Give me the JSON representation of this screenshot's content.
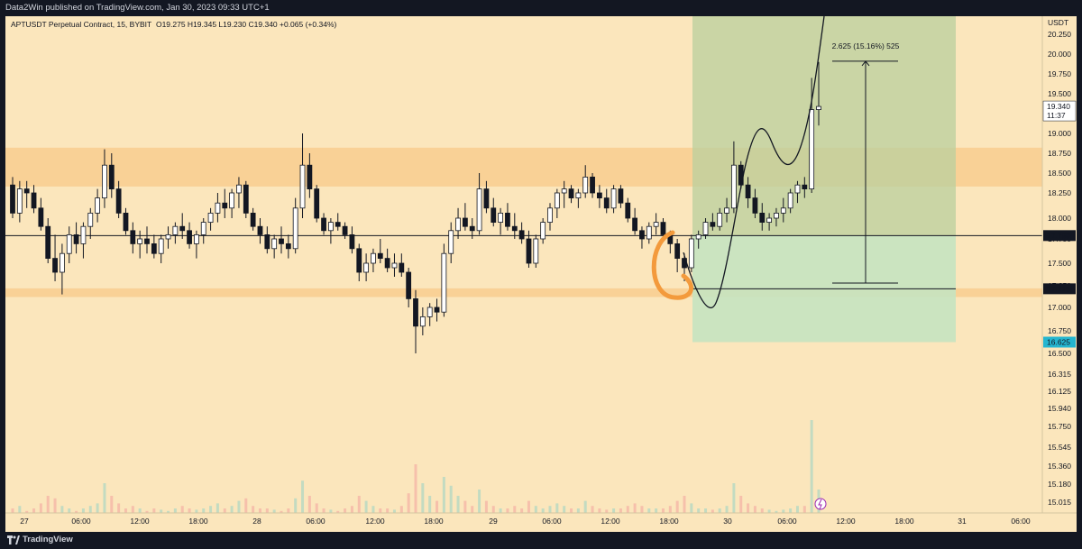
{
  "header": {
    "publisher_text": "Data2Win published on TradingView.com, Jan 30, 2023 09:33 UTC+1"
  },
  "legend": {
    "symbol": "APTUSDT Perpetual Contract, 15, BYBIT",
    "ohlc": "O19.275 H19.345 L19.230 C19.340 +0.065 (+0.34%)"
  },
  "footer": {
    "brand": "TradingView"
  },
  "colors": {
    "background": "#fbe6bc",
    "zone": "#f8c98a",
    "long_profit": "#b9cf9e",
    "long_stop": "#c5e3c0",
    "candle": "#131722",
    "orange_marker": "#f39a3c",
    "axis_tag": "#131722",
    "stop_tag": "#24b6d0"
  },
  "chart_data": {
    "type": "candlestick",
    "symbol": "APTUSDT",
    "interval": "15",
    "exchange": "BYBIT",
    "currency_label": "USDT",
    "ylim": [
      14.9,
      20.45
    ],
    "y_ticks": [
      "20.250",
      "20.000",
      "19.750",
      "19.500",
      "19.250",
      "19.000",
      "18.750",
      "18.500",
      "18.250",
      "18.000",
      "17.750",
      "17.500",
      "17.250",
      "17.000",
      "16.750",
      "16.500",
      "16.315",
      "16.125",
      "15.940",
      "15.750",
      "15.545",
      "15.360",
      "15.180",
      "15.015"
    ],
    "x_ticks": [
      "27",
      "06:00",
      "12:00",
      "18:00",
      "28",
      "06:00",
      "12:00",
      "18:00",
      "29",
      "06:00",
      "12:00",
      "18:00",
      "30",
      "06:00",
      "12:00",
      "18:00",
      "31",
      "06:00"
    ],
    "price_tags": [
      {
        "label": "19.340",
        "value": 19.34,
        "sub": "11:37"
      },
      {
        "label": "17.790",
        "value": 17.79
      },
      {
        "label": "17.215",
        "value": 17.215
      },
      {
        "label": "16.625",
        "value": 16.625
      }
    ],
    "horizontal_lines": [
      17.79,
      17.215
    ],
    "zones": [
      {
        "from": 18.33,
        "to": 18.82
      },
      {
        "from": 17.12,
        "to": 17.22
      }
    ],
    "position": {
      "entry": 17.79,
      "target": 20.45,
      "stop": 16.625,
      "x_from": "29 20:00",
      "x_to": "31 00:00"
    },
    "measure": {
      "label": "2.625 (15.16%) 525",
      "from": 17.28,
      "to": 19.91
    },
    "ohlc_points": [
      [
        18.35,
        18.45,
        18.0,
        18.05
      ],
      [
        18.05,
        18.4,
        17.95,
        18.3
      ],
      [
        18.3,
        18.4,
        18.1,
        18.25
      ],
      [
        18.25,
        18.35,
        18.05,
        18.1
      ],
      [
        18.1,
        18.2,
        17.85,
        17.9
      ],
      [
        17.9,
        18.0,
        17.5,
        17.55
      ],
      [
        17.55,
        17.8,
        17.3,
        17.4
      ],
      [
        17.4,
        17.7,
        17.15,
        17.6
      ],
      [
        17.6,
        17.9,
        17.5,
        17.8
      ],
      [
        17.8,
        17.95,
        17.6,
        17.7
      ],
      [
        17.7,
        17.95,
        17.55,
        17.9
      ],
      [
        17.9,
        18.1,
        17.75,
        18.05
      ],
      [
        18.05,
        18.3,
        17.95,
        18.2
      ],
      [
        18.2,
        18.8,
        18.1,
        18.6
      ],
      [
        18.6,
        18.75,
        18.2,
        18.3
      ],
      [
        18.3,
        18.4,
        18.0,
        18.05
      ],
      [
        18.05,
        18.1,
        17.8,
        17.85
      ],
      [
        17.85,
        17.95,
        17.6,
        17.7
      ],
      [
        17.7,
        17.85,
        17.55,
        17.75
      ],
      [
        17.75,
        17.9,
        17.6,
        17.7
      ],
      [
        17.7,
        17.8,
        17.55,
        17.6
      ],
      [
        17.6,
        17.8,
        17.5,
        17.75
      ],
      [
        17.75,
        17.9,
        17.65,
        17.8
      ],
      [
        17.8,
        17.95,
        17.7,
        17.9
      ],
      [
        17.9,
        18.05,
        17.75,
        17.85
      ],
      [
        17.85,
        17.95,
        17.65,
        17.7
      ],
      [
        17.7,
        17.85,
        17.55,
        17.8
      ],
      [
        17.8,
        18.0,
        17.7,
        17.95
      ],
      [
        17.95,
        18.1,
        17.85,
        18.05
      ],
      [
        18.05,
        18.25,
        17.95,
        18.15
      ],
      [
        18.15,
        18.3,
        18.0,
        18.1
      ],
      [
        18.1,
        18.3,
        18.0,
        18.25
      ],
      [
        18.25,
        18.45,
        18.1,
        18.35
      ],
      [
        18.35,
        18.4,
        18.0,
        18.05
      ],
      [
        18.05,
        18.1,
        17.85,
        17.9
      ],
      [
        17.9,
        18.0,
        17.7,
        17.8
      ],
      [
        17.8,
        17.9,
        17.6,
        17.65
      ],
      [
        17.65,
        17.8,
        17.55,
        17.75
      ],
      [
        17.75,
        17.9,
        17.6,
        17.7
      ],
      [
        17.7,
        17.8,
        17.55,
        17.65
      ],
      [
        17.65,
        18.2,
        17.6,
        18.1
      ],
      [
        18.1,
        19.0,
        18.0,
        18.6
      ],
      [
        18.6,
        18.75,
        18.2,
        18.3
      ],
      [
        18.3,
        18.35,
        17.95,
        18.0
      ],
      [
        18.0,
        18.05,
        17.8,
        17.85
      ],
      [
        17.85,
        18.0,
        17.7,
        17.95
      ],
      [
        17.95,
        18.05,
        17.85,
        17.9
      ],
      [
        17.9,
        17.95,
        17.75,
        17.8
      ],
      [
        17.8,
        17.9,
        17.6,
        17.65
      ],
      [
        17.65,
        17.7,
        17.3,
        17.4
      ],
      [
        17.4,
        17.6,
        17.3,
        17.5
      ],
      [
        17.5,
        17.65,
        17.4,
        17.6
      ],
      [
        17.6,
        17.75,
        17.5,
        17.55
      ],
      [
        17.55,
        17.65,
        17.4,
        17.45
      ],
      [
        17.45,
        17.6,
        17.35,
        17.5
      ],
      [
        17.5,
        17.6,
        17.35,
        17.4
      ],
      [
        17.4,
        17.45,
        17.0,
        17.1
      ],
      [
        17.1,
        17.2,
        16.5,
        16.8
      ],
      [
        16.8,
        17.0,
        16.7,
        16.9
      ],
      [
        16.9,
        17.05,
        16.8,
        17.0
      ],
      [
        17.0,
        17.1,
        16.85,
        16.95
      ],
      [
        16.95,
        17.7,
        16.9,
        17.6
      ],
      [
        17.6,
        17.95,
        17.5,
        17.85
      ],
      [
        17.85,
        18.1,
        17.75,
        18.0
      ],
      [
        18.0,
        18.15,
        17.85,
        17.9
      ],
      [
        17.9,
        18.0,
        17.75,
        17.85
      ],
      [
        17.85,
        18.5,
        17.8,
        18.3
      ],
      [
        18.3,
        18.4,
        18.05,
        18.1
      ],
      [
        18.1,
        18.2,
        17.9,
        17.95
      ],
      [
        17.95,
        18.1,
        17.8,
        18.05
      ],
      [
        18.05,
        18.15,
        17.85,
        17.9
      ],
      [
        17.9,
        18.05,
        17.75,
        17.85
      ],
      [
        17.85,
        17.95,
        17.7,
        17.75
      ],
      [
        17.75,
        17.85,
        17.45,
        17.5
      ],
      [
        17.5,
        17.8,
        17.45,
        17.75
      ],
      [
        17.75,
        18.0,
        17.7,
        17.95
      ],
      [
        17.95,
        18.15,
        17.85,
        18.1
      ],
      [
        18.1,
        18.3,
        18.0,
        18.25
      ],
      [
        18.25,
        18.4,
        18.1,
        18.3
      ],
      [
        18.3,
        18.35,
        18.15,
        18.2
      ],
      [
        18.2,
        18.3,
        18.1,
        18.25
      ],
      [
        18.25,
        18.6,
        18.2,
        18.45
      ],
      [
        18.45,
        18.5,
        18.2,
        18.25
      ],
      [
        18.25,
        18.35,
        18.1,
        18.2
      ],
      [
        18.2,
        18.3,
        18.05,
        18.1
      ],
      [
        18.1,
        18.35,
        18.05,
        18.3
      ],
      [
        18.3,
        18.35,
        18.1,
        18.15
      ],
      [
        18.15,
        18.2,
        17.95,
        18.0
      ],
      [
        18.0,
        18.1,
        17.8,
        17.85
      ],
      [
        17.85,
        17.9,
        17.65,
        17.75
      ],
      [
        17.75,
        17.95,
        17.7,
        17.9
      ],
      [
        17.9,
        18.05,
        17.8,
        17.95
      ],
      [
        17.95,
        18.0,
        17.75,
        17.8
      ],
      [
        17.8,
        17.85,
        17.6,
        17.7
      ],
      [
        17.7,
        17.75,
        17.4,
        17.55
      ],
      [
        17.55,
        17.6,
        17.3,
        17.45
      ],
      [
        17.45,
        17.8,
        17.4,
        17.75
      ],
      [
        17.75,
        17.85,
        17.65,
        17.8
      ],
      [
        17.8,
        18.0,
        17.75,
        17.95
      ],
      [
        17.95,
        18.05,
        17.85,
        17.9
      ],
      [
        17.9,
        18.1,
        17.85,
        18.05
      ],
      [
        18.05,
        18.2,
        17.95,
        18.1
      ],
      [
        18.1,
        18.9,
        18.05,
        18.6
      ],
      [
        18.6,
        18.65,
        18.3,
        18.35
      ],
      [
        18.35,
        18.45,
        18.1,
        18.2
      ],
      [
        18.2,
        18.3,
        18.0,
        18.05
      ],
      [
        18.05,
        18.15,
        17.85,
        17.95
      ],
      [
        17.95,
        18.05,
        17.85,
        18.0
      ],
      [
        18.0,
        18.1,
        17.9,
        18.05
      ],
      [
        18.05,
        18.2,
        17.95,
        18.1
      ],
      [
        18.1,
        18.3,
        18.05,
        18.25
      ],
      [
        18.25,
        18.4,
        18.15,
        18.35
      ],
      [
        18.35,
        18.45,
        18.2,
        18.3
      ],
      [
        18.3,
        19.7,
        18.25,
        19.3
      ],
      [
        19.3,
        19.9,
        19.1,
        19.34
      ]
    ],
    "volumes": [
      0.1,
      0.12,
      0.08,
      0.1,
      0.14,
      0.2,
      0.18,
      0.12,
      0.1,
      0.08,
      0.1,
      0.12,
      0.14,
      0.3,
      0.2,
      0.14,
      0.1,
      0.12,
      0.1,
      0.08,
      0.1,
      0.09,
      0.08,
      0.1,
      0.12,
      0.1,
      0.09,
      0.1,
      0.12,
      0.14,
      0.1,
      0.12,
      0.16,
      0.18,
      0.12,
      0.1,
      0.1,
      0.09,
      0.08,
      0.1,
      0.18,
      0.32,
      0.2,
      0.14,
      0.1,
      0.09,
      0.08,
      0.1,
      0.12,
      0.2,
      0.16,
      0.12,
      0.1,
      0.1,
      0.09,
      0.12,
      0.22,
      0.45,
      0.3,
      0.2,
      0.16,
      0.35,
      0.28,
      0.2,
      0.16,
      0.12,
      0.25,
      0.16,
      0.12,
      0.1,
      0.1,
      0.12,
      0.1,
      0.16,
      0.12,
      0.1,
      0.12,
      0.14,
      0.12,
      0.1,
      0.1,
      0.16,
      0.12,
      0.1,
      0.09,
      0.1,
      0.1,
      0.12,
      0.14,
      0.12,
      0.1,
      0.1,
      0.1,
      0.12,
      0.16,
      0.2,
      0.14,
      0.1,
      0.1,
      0.09,
      0.1,
      0.12,
      0.3,
      0.2,
      0.14,
      0.12,
      0.1,
      0.09,
      0.08,
      0.09,
      0.1,
      0.12,
      0.12,
      0.8,
      0.25
    ]
  }
}
